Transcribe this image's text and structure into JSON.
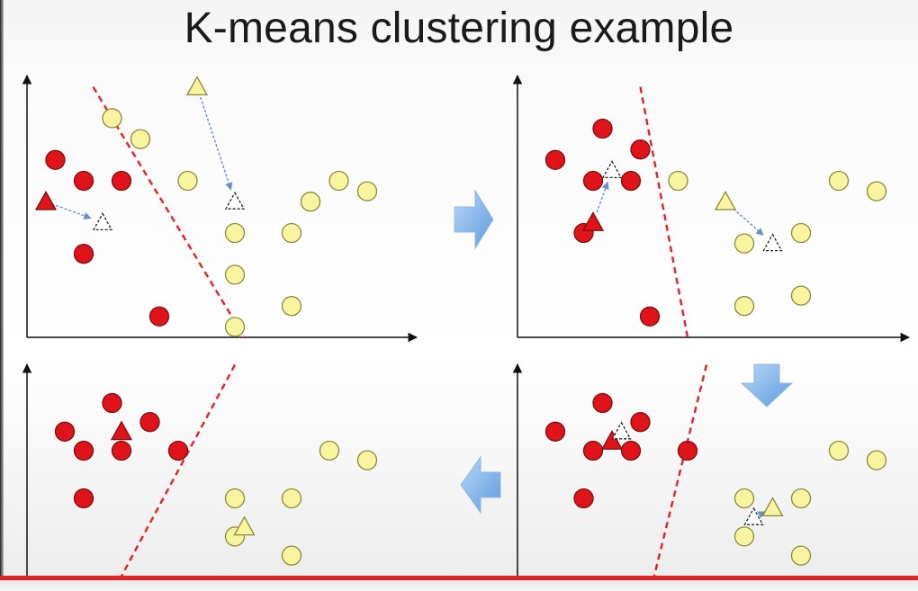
{
  "slide": {
    "title": "K-means clustering example"
  },
  "colors": {
    "cluster_red": "#e0131a",
    "cluster_red_stroke": "#7a1010",
    "cluster_yellow": "#f8f4a0",
    "cluster_yellow_stroke": "#8a8a3a",
    "boundary": "#e8202a",
    "step_arrow": "#7fb4ea",
    "progress_bar": "#e02424"
  },
  "panels": [
    {
      "step": 1,
      "red_points": [
        [
          3,
          17
        ],
        [
          6,
          15
        ],
        [
          10,
          15
        ],
        [
          6,
          8
        ],
        [
          14,
          2
        ]
      ],
      "yellow_points": [
        [
          9,
          21
        ],
        [
          12,
          19
        ],
        [
          17,
          15
        ],
        [
          22,
          10
        ],
        [
          22,
          6
        ],
        [
          22,
          1
        ],
        [
          28,
          10
        ],
        [
          28,
          3
        ],
        [
          30,
          13
        ],
        [
          33,
          15
        ],
        [
          36,
          14
        ]
      ],
      "old_centroids": [
        {
          "cluster": "red",
          "x": 2,
          "y": 13
        },
        {
          "cluster": "yellow",
          "x": 18,
          "y": 24
        }
      ],
      "new_centroids": [
        {
          "cluster": "red",
          "x": 8,
          "y": 11
        },
        {
          "cluster": "yellow",
          "x": 22,
          "y": 13
        }
      ],
      "boundary": [
        [
          7,
          24
        ],
        [
          23,
          0
        ]
      ]
    },
    {
      "step": 2,
      "red_points": [
        [
          4,
          17
        ],
        [
          9,
          20
        ],
        [
          13,
          18
        ],
        [
          8,
          15
        ],
        [
          12,
          15
        ],
        [
          7,
          10
        ],
        [
          14,
          2
        ]
      ],
      "yellow_points": [
        [
          17,
          15
        ],
        [
          24,
          9
        ],
        [
          24,
          3
        ],
        [
          30,
          10
        ],
        [
          30,
          4
        ],
        [
          34,
          15
        ],
        [
          38,
          14
        ]
      ],
      "old_centroids": [
        {
          "cluster": "red",
          "x": 8,
          "y": 11
        },
        {
          "cluster": "yellow",
          "x": 22,
          "y": 13
        }
      ],
      "new_centroids": [
        {
          "cluster": "red",
          "x": 10,
          "y": 16
        },
        {
          "cluster": "yellow",
          "x": 27,
          "y": 9
        }
      ],
      "boundary": [
        [
          13,
          24
        ],
        [
          18,
          0
        ]
      ]
    },
    {
      "step": 3,
      "red_points": [
        [
          4,
          17
        ],
        [
          9,
          20
        ],
        [
          13,
          18
        ],
        [
          8,
          15
        ],
        [
          12,
          15
        ],
        [
          7,
          10
        ],
        [
          18,
          15
        ]
      ],
      "yellow_points": [
        [
          24,
          10
        ],
        [
          24,
          6
        ],
        [
          30,
          10
        ],
        [
          30,
          4
        ],
        [
          34,
          15
        ],
        [
          38,
          14
        ]
      ],
      "old_centroids": [
        {
          "cluster": "red",
          "x": 10,
          "y": 16
        },
        {
          "cluster": "yellow",
          "x": 27,
          "y": 9
        }
      ],
      "new_centroids": [
        {
          "cluster": "red",
          "x": 11,
          "y": 17
        },
        {
          "cluster": "yellow",
          "x": 25,
          "y": 8
        }
      ],
      "boundary": [
        [
          20,
          24
        ],
        [
          14,
          0
        ]
      ]
    },
    {
      "step": 4,
      "red_points": [
        [
          4,
          17
        ],
        [
          9,
          20
        ],
        [
          13,
          18
        ],
        [
          6,
          15
        ],
        [
          10,
          15
        ],
        [
          6,
          10
        ],
        [
          16,
          15
        ]
      ],
      "yellow_points": [
        [
          22,
          10
        ],
        [
          22,
          6
        ],
        [
          28,
          10
        ],
        [
          28,
          4
        ],
        [
          32,
          15
        ],
        [
          36,
          14
        ]
      ],
      "centroids": [
        {
          "cluster": "red",
          "x": 10,
          "y": 17
        },
        {
          "cluster": "yellow",
          "x": 23,
          "y": 7
        }
      ],
      "boundary": [
        [
          22,
          24
        ],
        [
          9,
          0
        ]
      ]
    }
  ]
}
